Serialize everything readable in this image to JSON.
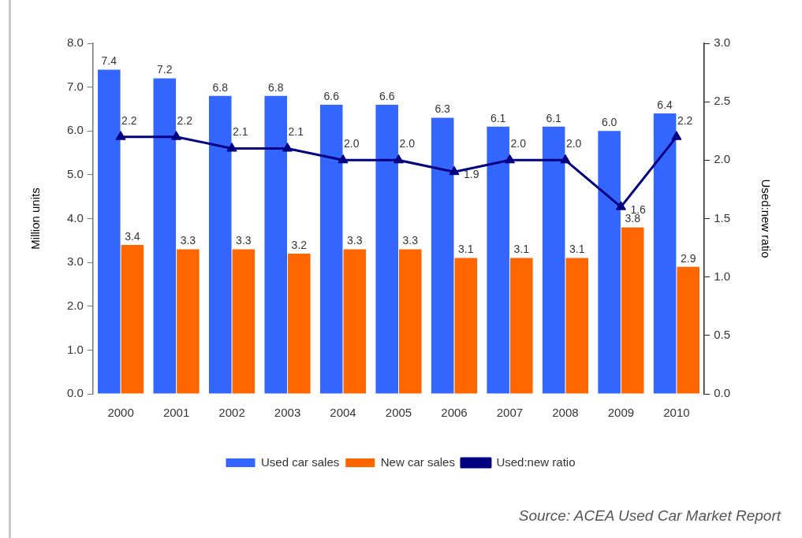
{
  "chart_data": {
    "type": "bar",
    "categories": [
      "2000",
      "2001",
      "2002",
      "2003",
      "2004",
      "2005",
      "2006",
      "2007",
      "2008",
      "2009",
      "2010"
    ],
    "series": [
      {
        "name": "Used car sales",
        "color": "#3366ff",
        "values": [
          7.4,
          7.2,
          6.8,
          6.8,
          6.6,
          6.6,
          6.3,
          6.1,
          6.1,
          6.0,
          6.4
        ],
        "value_labels": [
          "7.4",
          "7.2",
          "6.8",
          "6.8",
          "6.6",
          "6.6",
          "6.3",
          "6.1",
          "6.1",
          "6.0",
          "6.4"
        ]
      },
      {
        "name": "New car sales",
        "color": "#ff6600",
        "values": [
          3.4,
          3.3,
          3.3,
          3.2,
          3.3,
          3.3,
          3.1,
          3.1,
          3.1,
          3.8,
          2.9
        ],
        "value_labels": [
          "3.4",
          "3.3",
          "3.3",
          "3.2",
          "3.3",
          "3.3",
          "3.1",
          "3.1",
          "3.1",
          "3.8",
          "2.9"
        ]
      },
      {
        "name": "Used:new ratio",
        "type": "line",
        "axis": "y2",
        "color": "#000080",
        "values": [
          2.2,
          2.2,
          2.1,
          2.1,
          2.0,
          2.0,
          1.9,
          2.0,
          2.0,
          1.6,
          2.2
        ],
        "value_labels": [
          "2.2",
          "2.2",
          "2.1",
          "2.1",
          "2.0",
          "2.0",
          "1.9",
          "2.0",
          "2.0",
          "1.6",
          "2.2"
        ]
      }
    ],
    "ylabel": "Million units",
    "y2label": "Used:new ratio",
    "ylim": [
      0,
      8
    ],
    "yticks": [
      {
        "value": 0,
        "label": "0.0"
      },
      {
        "value": 1,
        "label": "1.0"
      },
      {
        "value": 2,
        "label": "2.0"
      },
      {
        "value": 3,
        "label": "3.0"
      },
      {
        "value": 4,
        "label": "4.0"
      },
      {
        "value": 5,
        "label": "5.0"
      },
      {
        "value": 6,
        "label": "6.0"
      },
      {
        "value": 7,
        "label": "7.0"
      },
      {
        "value": 8,
        "label": "8.0"
      }
    ],
    "y2lim": [
      0,
      3
    ],
    "y2ticks": [
      {
        "value": 0,
        "label": "0.0"
      },
      0.5,
      {
        "value": 1,
        "label": "1.0"
      },
      1.5,
      {
        "value": 2,
        "label": "2.0"
      },
      2.5,
      {
        "value": 3,
        "label": "3.0"
      }
    ],
    "legend": "bottom",
    "grid": false,
    "marker": "triangle",
    "line_style": "solid",
    "annotations": [
      "Source: ACEA Used Car Market Report"
    ]
  }
}
